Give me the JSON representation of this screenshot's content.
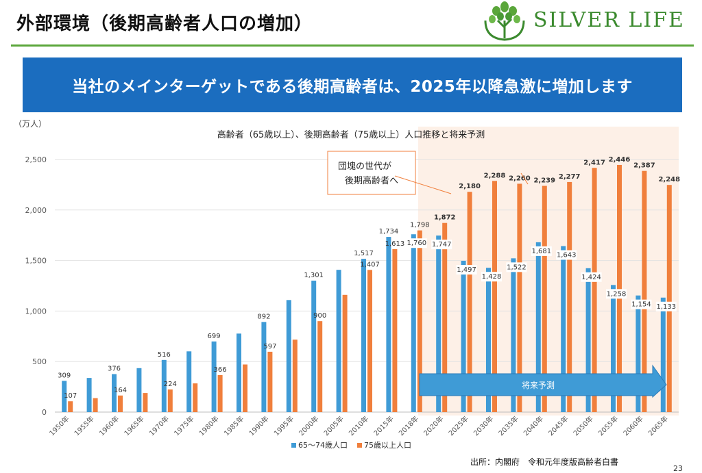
{
  "slide": {
    "title": "外部環境（後期高齢者人口の増加）",
    "banner": "当社のメインターゲットである後期高齢者は、2025年以降急激に増加します",
    "logo_text": "SILVER LIFE",
    "source": "出所：内閣府　令和元年度版高齢者白書",
    "page_number": "23"
  },
  "colors": {
    "series_65_74": "#3f9bd6",
    "series_75_plus": "#f07f3c",
    "forecast_bg": "#fdf0e7",
    "banner": "#1b6dbf",
    "brand_green": "#3b8a2e"
  },
  "chart_data": {
    "type": "bar",
    "title": "高齢者（65歳以上）、後期高齢者（75歳以上）人口推移と将来予測",
    "unit_label": "（万人）",
    "ylim": [
      0,
      2500
    ],
    "yticks": [
      0,
      500,
      1000,
      1500,
      2000,
      2500
    ],
    "grid": true,
    "legend_position": "bottom",
    "categories": [
      "1950年",
      "1955年",
      "1960年",
      "1965年",
      "1970年",
      "1975年",
      "1980年",
      "1985年",
      "1990年",
      "1995年",
      "2000年",
      "2005年",
      "2010年",
      "2015年",
      "2018年",
      "2020年",
      "2025年",
      "2030年",
      "2035年",
      "2040年",
      "2045年",
      "2050年",
      "2055年",
      "2060年",
      "2065年"
    ],
    "series": [
      {
        "name": "65～74歳人口",
        "values": [
          309,
          338,
          376,
          435,
          516,
          601,
          699,
          777,
          892,
          1109,
          1301,
          1408,
          1517,
          1734,
          1760,
          1747,
          1497,
          1428,
          1522,
          1681,
          1643,
          1424,
          1258,
          1154,
          1133
        ]
      },
      {
        "name": "75歳以上人口",
        "values": [
          107,
          138,
          164,
          189,
          224,
          284,
          366,
          471,
          597,
          717,
          900,
          1160,
          1407,
          1613,
          1798,
          1872,
          2180,
          2288,
          2260,
          2239,
          2277,
          2417,
          2446,
          2387,
          2248
        ]
      }
    ],
    "labels_65_74": [
      "309",
      "",
      "376",
      "",
      "516",
      "",
      "699",
      "",
      "892",
      "",
      "1,301",
      "",
      "1,517",
      "1,734",
      "1,760",
      "1,747",
      "1,497",
      "1,428",
      "1,522",
      "1,681",
      "1,643",
      "1,424",
      "1,258",
      "1,154",
      "1,133"
    ],
    "labels_75_plus": [
      "107",
      "",
      "164",
      "",
      "224",
      "",
      "366",
      "",
      "597",
      "",
      "900",
      "",
      "1,407",
      "1,613",
      "1,798",
      "1,872",
      "2,180",
      "2,288",
      "2,260",
      "2,239",
      "2,277",
      "2,417",
      "2,446",
      "2,387",
      "2,248"
    ],
    "forecast_arrow_label": "将来予測",
    "callout": {
      "line1": "団塊の世代が",
      "line2": "後期高齢者へ"
    }
  }
}
